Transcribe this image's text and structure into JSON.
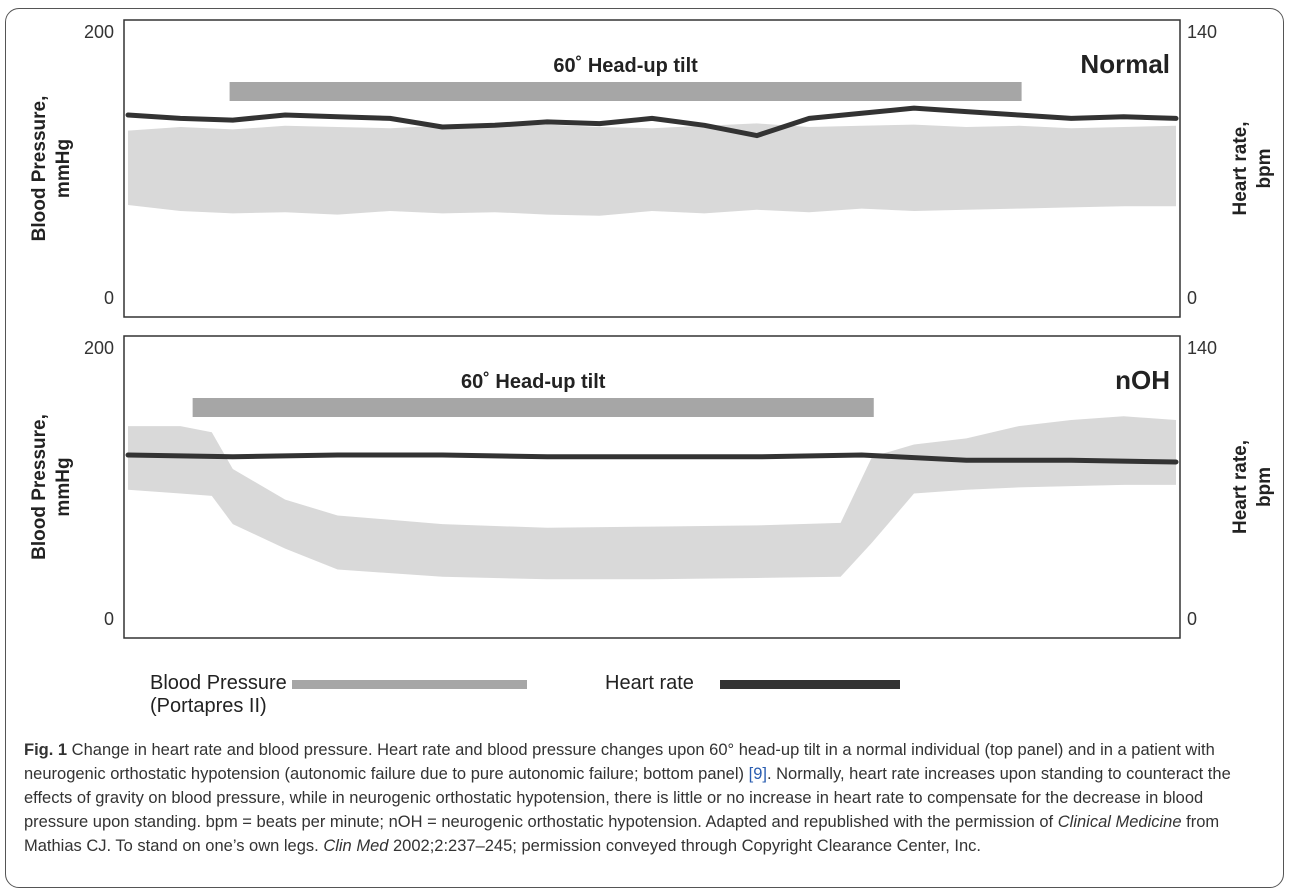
{
  "colors": {
    "bp_fill": "#d9d9d9",
    "bp_legend": "#a6a6a6",
    "tilt_bar": "#a6a6a6",
    "hr_line": "#333333",
    "reference_link": "#2a5db0"
  },
  "chart_data": [
    {
      "type": "area",
      "panel_label": "Normal",
      "annotation": "60˚ Head-up tilt",
      "annotation_span_fraction": [
        0.1,
        0.85
      ],
      "left_axis": {
        "label_line1": "Blood Pressure,",
        "label_line2": "mmHg",
        "ticks": [
          "200",
          "0"
        ],
        "range": [
          0,
          200
        ]
      },
      "right_axis": {
        "label_line1": "Heart rate,",
        "label_line2": "bpm",
        "ticks": [
          "140",
          "0"
        ],
        "range": [
          0,
          140
        ]
      },
      "series": [
        {
          "name": "Blood Pressure",
          "kind": "band",
          "x": [
            0,
            0.05,
            0.1,
            0.15,
            0.2,
            0.25,
            0.3,
            0.35,
            0.4,
            0.45,
            0.5,
            0.55,
            0.6,
            0.65,
            0.7,
            0.75,
            0.8,
            0.85,
            0.9,
            0.95,
            1.0
          ],
          "upper": [
            137,
            140,
            138,
            141,
            140,
            139,
            141,
            140,
            142,
            140,
            139,
            141,
            143,
            140,
            141,
            142,
            140,
            141,
            139,
            140,
            141
          ],
          "lower": [
            75,
            70,
            68,
            69,
            67,
            70,
            68,
            69,
            67,
            66,
            70,
            68,
            71,
            69,
            72,
            70,
            71,
            72,
            73,
            74,
            74
          ]
        },
        {
          "name": "Heart rate",
          "kind": "line",
          "x": [
            0,
            0.05,
            0.1,
            0.15,
            0.2,
            0.25,
            0.3,
            0.35,
            0.4,
            0.45,
            0.5,
            0.55,
            0.6,
            0.65,
            0.7,
            0.75,
            0.8,
            0.85,
            0.9,
            0.95,
            1.0
          ],
          "y": [
            105,
            103,
            102,
            105,
            104,
            103,
            98,
            99,
            101,
            100,
            103,
            99,
            93,
            103,
            106,
            109,
            107,
            105,
            103,
            104,
            103
          ]
        }
      ]
    },
    {
      "type": "area",
      "panel_label": "nOH",
      "annotation": "60˚ Head-up tilt",
      "annotation_span_fraction": [
        0.065,
        0.71
      ],
      "left_axis": {
        "label_line1": "Blood Pressure,",
        "label_line2": "mmHg",
        "ticks": [
          "200",
          "0"
        ],
        "range": [
          0,
          200
        ]
      },
      "right_axis": {
        "label_line1": "Heart rate,",
        "label_line2": "bpm",
        "ticks": [
          "140",
          "0"
        ],
        "range": [
          0,
          140
        ]
      },
      "series": [
        {
          "name": "Blood Pressure",
          "kind": "band",
          "x": [
            0,
            0.05,
            0.08,
            0.1,
            0.15,
            0.2,
            0.3,
            0.4,
            0.5,
            0.6,
            0.68,
            0.71,
            0.75,
            0.8,
            0.85,
            0.9,
            0.95,
            1.0
          ],
          "upper": [
            155,
            155,
            150,
            120,
            95,
            82,
            75,
            72,
            73,
            74,
            76,
            130,
            140,
            145,
            155,
            160,
            163,
            160
          ],
          "lower": [
            103,
            100,
            98,
            75,
            55,
            38,
            32,
            30,
            30,
            31,
            32,
            60,
            100,
            103,
            105,
            106,
            107,
            107
          ]
        },
        {
          "name": "Heart rate",
          "kind": "line",
          "x": [
            0,
            0.1,
            0.2,
            0.3,
            0.4,
            0.5,
            0.6,
            0.7,
            0.8,
            0.9,
            1.0
          ],
          "y": [
            92,
            91,
            92,
            92,
            91,
            91,
            91,
            92,
            89,
            89,
            88
          ]
        }
      ]
    }
  ],
  "legend": {
    "bp_label_line1": "Blood Pressure",
    "bp_label_line2": "(Portapres II)",
    "hr_label": "Heart rate"
  },
  "caption": {
    "fig_label": "Fig. 1",
    "text1": " Change in heart rate and blood pressure. Heart rate and blood pressure changes upon 60° head-up tilt in a normal individual (top panel) and in a patient with neurogenic orthostatic hypotension (autonomic failure due to pure autonomic failure; bottom panel) ",
    "ref": "[9]",
    "text2": ". Normally, heart rate increases upon standing to counteract the effects of gravity on blood pressure, while in neurogenic orthostatic hypotension, there is little or no increase in heart rate to compensate for the decrease in blood pressure upon standing. bpm = beats per minute; nOH = neurogenic orthostatic hypotension. Adapted and republished with the permission of ",
    "journal": "Clinical Medicine",
    "text3": " from Mathias CJ. To stand on one’s own legs. ",
    "journal_abbrev": "Clin Med",
    "text4": " 2002;2:237–245; permission conveyed through Copyright Clearance Center, Inc."
  }
}
